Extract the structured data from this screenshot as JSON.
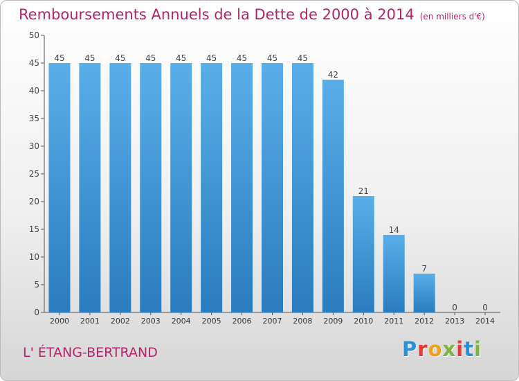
{
  "chart_data": {
    "type": "bar",
    "title": "Remboursements Annuels de la Dette de 2000 à 2014",
    "subtitle": "(en milliers d'€)",
    "categories": [
      "2000",
      "2001",
      "2002",
      "2003",
      "2004",
      "2005",
      "2006",
      "2007",
      "2008",
      "2009",
      "2010",
      "2011",
      "2012",
      "2013",
      "2014"
    ],
    "values": [
      45,
      45,
      45,
      45,
      45,
      45,
      45,
      45,
      45,
      42,
      21,
      14,
      7,
      0,
      0
    ],
    "ylim": [
      0,
      50
    ],
    "yticks": [
      0,
      5,
      10,
      15,
      20,
      25,
      30,
      35,
      40,
      45,
      50
    ],
    "grid": false,
    "legend": "none",
    "colors": {
      "bar_top": "#5aaee8",
      "bar_bottom": "#2a7cbe",
      "title": "#b5236a"
    }
  },
  "footer": {
    "commune": "L' ÉTANG-BERTRAND",
    "logo": "Proxiti"
  }
}
